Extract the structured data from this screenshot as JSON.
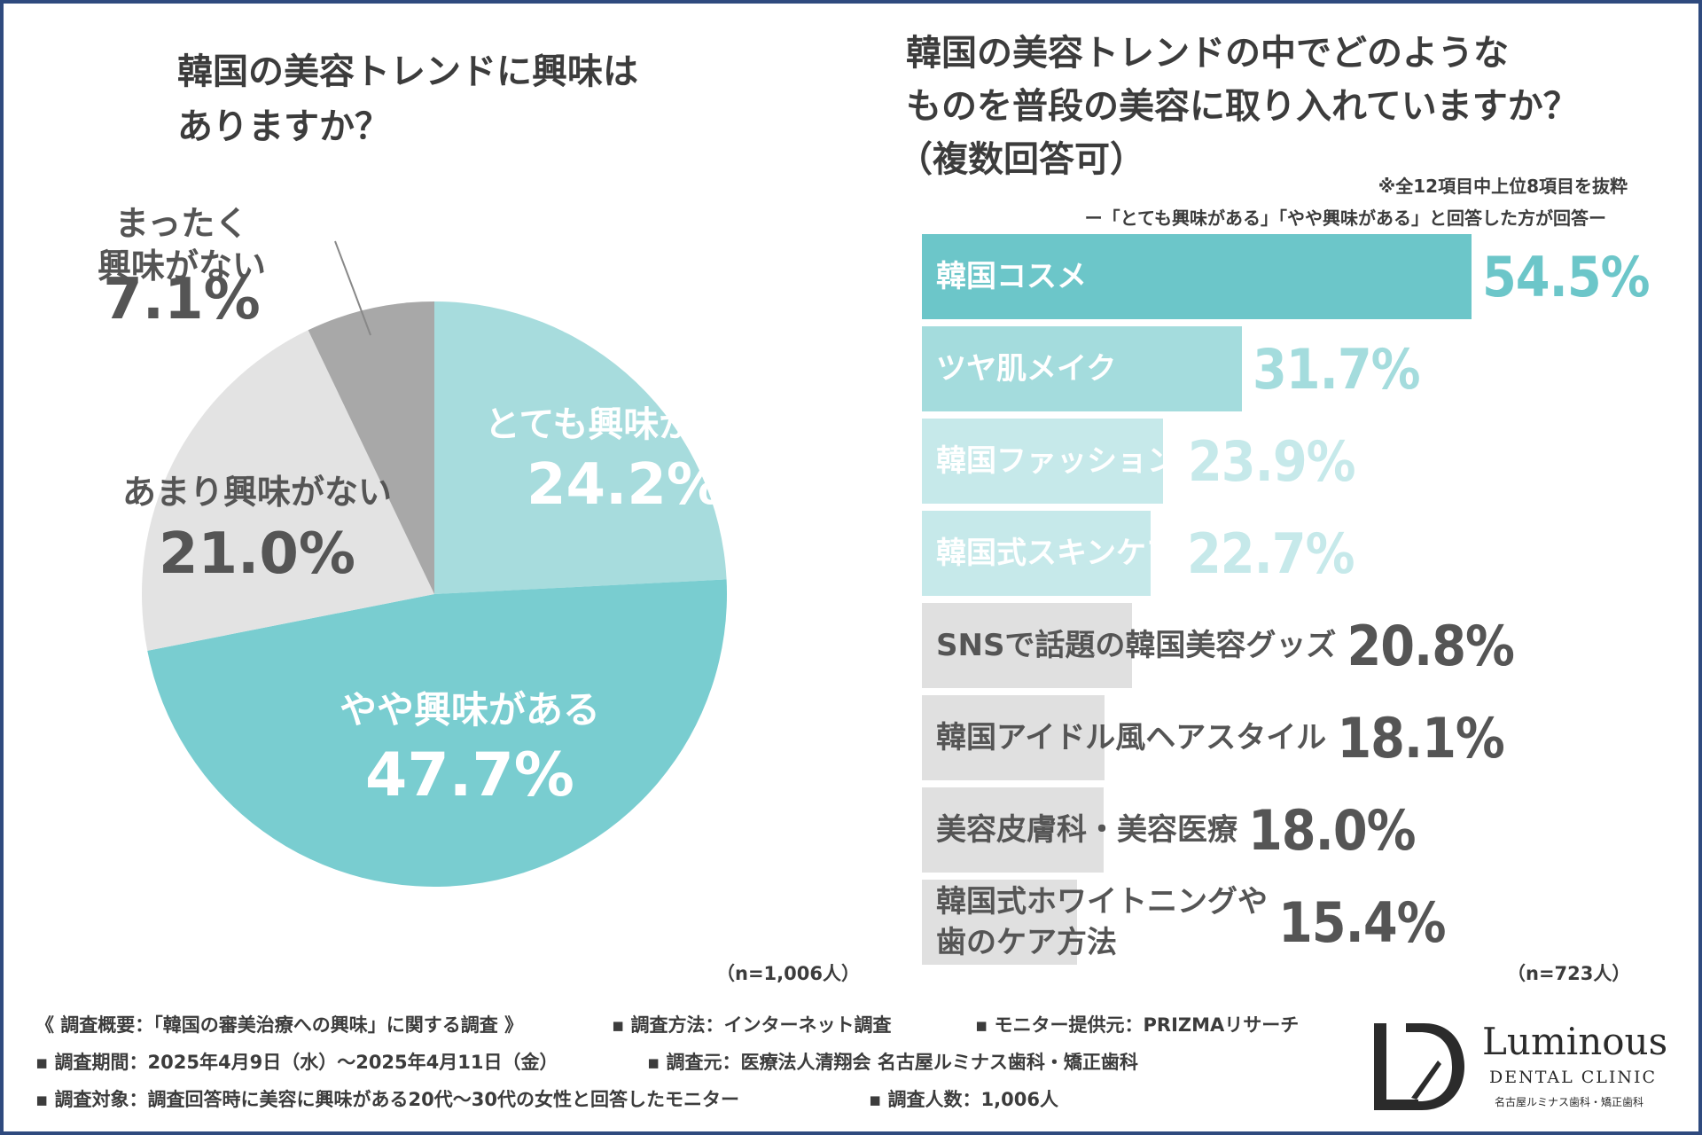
{
  "chart_data": [
    {
      "type": "pie",
      "title": "韓国の美容トレンドに興味はありますか？",
      "title_lines": [
        "韓国の美容トレンドに興味は",
        "ありますか？"
      ],
      "n_label": "（n=1,006人）",
      "slices": [
        {
          "label_lines": [
            "とても興味がある"
          ],
          "value": 24.2,
          "value_label": "24.2%",
          "color": "#a7dcdd",
          "label_color": "#ffffff"
        },
        {
          "label_lines": [
            "やや興味がある"
          ],
          "value": 47.7,
          "value_label": "47.7%",
          "color": "#79cdd0",
          "label_color": "#ffffff"
        },
        {
          "label_lines": [
            "あまり興味がない"
          ],
          "value": 21.0,
          "value_label": "21.0%",
          "color": "#e3e3e3",
          "label_color": "#555555"
        },
        {
          "label_lines": [
            "まったく",
            "興味がない"
          ],
          "value": 7.1,
          "value_label": "7.1%",
          "color": "#a8a8a8",
          "label_color": "#555555"
        }
      ]
    },
    {
      "type": "bar",
      "orientation": "horizontal",
      "title": "韓国の美容トレンドの中でどのようなものを普段の美容に取り入れていますか？（複数回答可）",
      "title_lines": [
        "韓国の美容トレンドの中でどのような",
        "ものを普段の美容に取り入れていますか？",
        "（複数回答可）"
      ],
      "note": "※全12項目中上位8項目を抜粋",
      "subnote": "ー「とても興味がある」「やや興味がある」と回答した方が回答ー",
      "n_label": "（n=723人）",
      "unit": "%",
      "xlim": [
        0,
        60
      ],
      "bars": [
        {
          "label_lines": [
            "韓国コスメ"
          ],
          "value": 54.5,
          "value_label": "54.5%",
          "color": "#6cc6c9",
          "label_color": "#ffffff",
          "value_color": "#6cc6c9"
        },
        {
          "label_lines": [
            "ツヤ肌メイク"
          ],
          "value": 31.7,
          "value_label": "31.7%",
          "color": "#a4dcdd",
          "label_color": "#ffffff",
          "value_color": "#a4dcdd"
        },
        {
          "label_lines": [
            "韓国ファッション"
          ],
          "value": 23.9,
          "value_label": "23.9%",
          "color": "#c6e9ea",
          "label_color": "#ffffff",
          "value_color": "#c6e9ea"
        },
        {
          "label_lines": [
            "韓国式スキンケア"
          ],
          "value": 22.7,
          "value_label": "22.7%",
          "color": "#c6e9ea",
          "label_color": "#ffffff",
          "value_color": "#c6e9ea"
        },
        {
          "label_lines": [
            "SNSで話題の韓国美容グッズ"
          ],
          "value": 20.8,
          "value_label": "20.8%",
          "color": "#e0e0e0",
          "label_color": "#555555",
          "value_color": "#555555"
        },
        {
          "label_lines": [
            "韓国アイドル風ヘアスタイル"
          ],
          "value": 18.1,
          "value_label": "18.1%",
          "color": "#e0e0e0",
          "label_color": "#555555",
          "value_color": "#555555"
        },
        {
          "label_lines": [
            "美容皮膚科・美容医療"
          ],
          "value": 18.0,
          "value_label": "18.0%",
          "color": "#e0e0e0",
          "label_color": "#555555",
          "value_color": "#555555"
        },
        {
          "label_lines": [
            "韓国式ホワイトニングや",
            "歯のケア方法"
          ],
          "value": 15.4,
          "value_label": "15.4%",
          "color": "#e0e0e0",
          "label_color": "#555555",
          "value_color": "#555555"
        }
      ]
    }
  ],
  "footer": {
    "rows": [
      [
        "《 調査概要：「韓国の審美治療への興味」に関する調査 》",
        "▪ 調査方法：インターネット調査",
        "▪ モニター提供元：PRIZMAリサーチ"
      ],
      [
        "▪ 調査期間：2025年4月9日（水）～2025年4月11日（金）",
        "▪ 調査元：医療法人清翔会 名古屋ルミナス歯科・矯正歯科"
      ],
      [
        "▪ 調査対象：調査回答時に美容に興味がある20代～30代の女性と回答したモニター",
        "▪ 調査人数：1,006人"
      ]
    ]
  },
  "logo": {
    "mark_text": "LD",
    "name": "Luminous",
    "sub": "DENTAL CLINIC",
    "jp": "名古屋ルミナス歯科・矯正歯科"
  },
  "colors": {
    "frame": "#2f4a7e",
    "title": "#3c3c3c"
  }
}
